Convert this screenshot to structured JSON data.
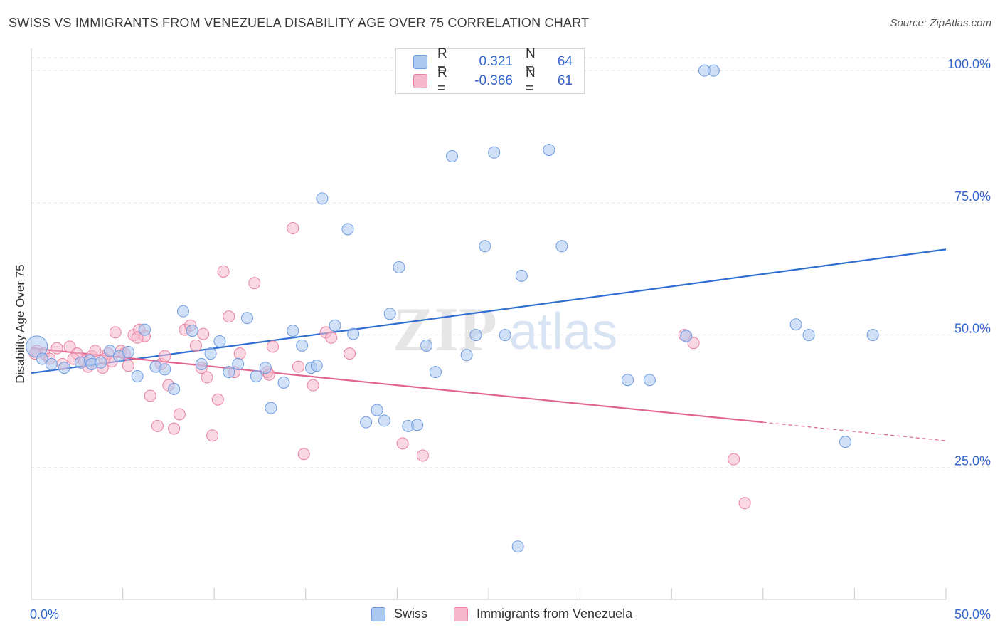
{
  "title": "SWISS VS IMMIGRANTS FROM VENEZUELA DISABILITY AGE OVER 75 CORRELATION CHART",
  "source": "Source: ZipAtlas.com",
  "watermark": {
    "zip": "ZIP",
    "atlas": "atlas"
  },
  "legend_box": {
    "rows": [
      {
        "r_label": "R =",
        "r_value": "0.321",
        "n_label": "N =",
        "n_value": "64",
        "color": "#aac8f0"
      },
      {
        "r_label": "R =",
        "r_value": "-0.366",
        "n_label": "N =",
        "n_value": "61",
        "color": "#f5b8cc"
      }
    ]
  },
  "bottom_legend": [
    {
      "label": "Swiss",
      "color": "#aac8f0"
    },
    {
      "label": "Immigrants from Venezuela",
      "color": "#f5b8cc"
    }
  ],
  "colors": {
    "swiss_fill": "#aac8f0",
    "swiss_stroke": "#6f9be0",
    "swiss_line": "#2f6fd0",
    "ven_fill": "#f5b8cc",
    "ven_stroke": "#e8839f",
    "ven_line": "#e0668e",
    "axis_label": "#3366cc",
    "grid": "#e2e2e2"
  },
  "chart_data": {
    "type": "scatter",
    "xlabel": "",
    "ylabel": "Disability Age Over 75",
    "xlim": [
      0,
      50
    ],
    "ylim": [
      0,
      105
    ],
    "x_ticks": [
      "0.0%",
      "50.0%"
    ],
    "y_ticks": [
      {
        "value": 25,
        "label": "25.0%"
      },
      {
        "value": 50,
        "label": "50.0%"
      },
      {
        "value": 75,
        "label": "75.0%"
      },
      {
        "value": 100,
        "label": "100.0%"
      }
    ],
    "grid": true,
    "series": [
      {
        "name": "Swiss",
        "trend": {
          "x": [
            0,
            50
          ],
          "y": [
            42.8,
            66.2
          ]
        },
        "points": [
          [
            0.3,
            47.8
          ],
          [
            0.6,
            45.5
          ],
          [
            1.1,
            44.5
          ],
          [
            1.8,
            43.8
          ],
          [
            2.7,
            44.8
          ],
          [
            3.2,
            45.2
          ],
          [
            3.3,
            44.5
          ],
          [
            3.8,
            44.8
          ],
          [
            4.3,
            47.0
          ],
          [
            4.8,
            46.0
          ],
          [
            5.3,
            46.8
          ],
          [
            5.8,
            42.2
          ],
          [
            6.2,
            51.0
          ],
          [
            6.8,
            44.0
          ],
          [
            7.3,
            43.5
          ],
          [
            7.8,
            39.8
          ],
          [
            8.3,
            54.5
          ],
          [
            8.8,
            50.8
          ],
          [
            9.3,
            44.5
          ],
          [
            9.8,
            46.5
          ],
          [
            10.3,
            48.8
          ],
          [
            10.8,
            43.0
          ],
          [
            11.3,
            44.5
          ],
          [
            11.8,
            53.2
          ],
          [
            12.3,
            42.2
          ],
          [
            12.8,
            43.8
          ],
          [
            13.1,
            36.2
          ],
          [
            13.8,
            41.0
          ],
          [
            14.3,
            50.8
          ],
          [
            14.8,
            48.0
          ],
          [
            15.3,
            43.8
          ],
          [
            15.6,
            44.2
          ],
          [
            15.9,
            75.8
          ],
          [
            16.6,
            51.8
          ],
          [
            17.3,
            70.0
          ],
          [
            17.6,
            50.2
          ],
          [
            18.3,
            33.5
          ],
          [
            18.9,
            35.8
          ],
          [
            19.3,
            33.8
          ],
          [
            19.6,
            54.0
          ],
          [
            20.1,
            62.8
          ],
          [
            20.6,
            32.8
          ],
          [
            21.1,
            33.0
          ],
          [
            21.6,
            48.0
          ],
          [
            22.1,
            43.0
          ],
          [
            23.0,
            83.8
          ],
          [
            23.8,
            46.2
          ],
          [
            24.3,
            50.0
          ],
          [
            24.8,
            66.8
          ],
          [
            25.3,
            84.5
          ],
          [
            25.9,
            50.0
          ],
          [
            26.6,
            10.0
          ],
          [
            26.8,
            61.2
          ],
          [
            28.3,
            85.0
          ],
          [
            29.0,
            66.8
          ],
          [
            32.6,
            41.5
          ],
          [
            33.8,
            41.5
          ],
          [
            35.8,
            49.8
          ],
          [
            36.8,
            100.0
          ],
          [
            37.3,
            100.0
          ],
          [
            41.8,
            52.0
          ],
          [
            42.5,
            50.0
          ],
          [
            44.5,
            29.8
          ],
          [
            46.0,
            50.0
          ]
        ]
      },
      {
        "name": "Immigrants from Venezuela",
        "trend": {
          "x": [
            0,
            40
          ],
          "y": [
            47.5,
            33.5
          ],
          "dashed_to": {
            "x": 50,
            "y": 30.0
          }
        },
        "points": [
          [
            0.3,
            47.0
          ],
          [
            0.7,
            46.5
          ],
          [
            1.0,
            45.5
          ],
          [
            1.4,
            47.5
          ],
          [
            1.7,
            44.5
          ],
          [
            2.1,
            47.8
          ],
          [
            2.5,
            46.5
          ],
          [
            2.9,
            45.0
          ],
          [
            3.3,
            46.0
          ],
          [
            3.5,
            47.0
          ],
          [
            3.9,
            43.8
          ],
          [
            4.2,
            46.5
          ],
          [
            4.4,
            45.0
          ],
          [
            4.6,
            50.5
          ],
          [
            4.9,
            47.0
          ],
          [
            5.1,
            46.5
          ],
          [
            5.3,
            44.2
          ],
          [
            5.6,
            50.0
          ],
          [
            5.9,
            51.0
          ],
          [
            6.2,
            49.8
          ],
          [
            6.5,
            38.5
          ],
          [
            6.9,
            32.8
          ],
          [
            7.1,
            44.5
          ],
          [
            7.3,
            46.0
          ],
          [
            7.5,
            40.5
          ],
          [
            7.8,
            32.3
          ],
          [
            8.1,
            35.0
          ],
          [
            8.4,
            51.0
          ],
          [
            8.7,
            51.8
          ],
          [
            9.0,
            48.0
          ],
          [
            9.3,
            43.8
          ],
          [
            9.6,
            42.0
          ],
          [
            9.9,
            31.0
          ],
          [
            10.2,
            37.8
          ],
          [
            10.5,
            62.0
          ],
          [
            10.8,
            53.5
          ],
          [
            11.1,
            43.0
          ],
          [
            11.4,
            46.5
          ],
          [
            12.2,
            59.8
          ],
          [
            12.9,
            43.0
          ],
          [
            13.2,
            47.8
          ],
          [
            14.3,
            70.2
          ],
          [
            14.6,
            44.0
          ],
          [
            14.9,
            27.5
          ],
          [
            15.4,
            40.5
          ],
          [
            16.1,
            50.5
          ],
          [
            16.4,
            49.5
          ],
          [
            17.4,
            46.5
          ],
          [
            20.3,
            29.5
          ],
          [
            21.4,
            27.2
          ],
          [
            35.7,
            50.0
          ],
          [
            36.2,
            48.5
          ],
          [
            38.4,
            26.5
          ],
          [
            39.0,
            18.2
          ],
          [
            5.8,
            49.5
          ],
          [
            0.2,
            46.5
          ],
          [
            2.3,
            45.5
          ],
          [
            3.1,
            44.0
          ],
          [
            4.0,
            45.5
          ],
          [
            9.4,
            50.2
          ],
          [
            13.0,
            42.5
          ]
        ]
      }
    ]
  }
}
